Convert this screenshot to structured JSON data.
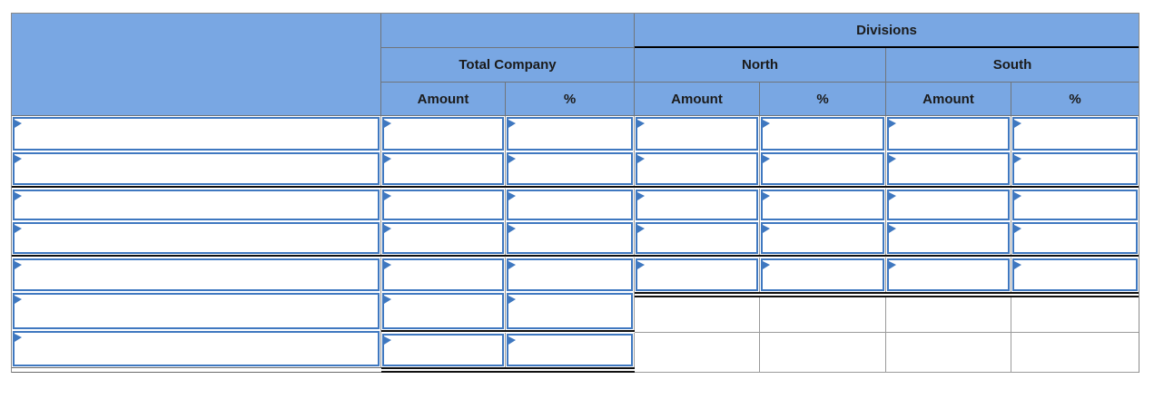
{
  "table": {
    "header": {
      "divisions": "Divisions",
      "total_company": "Total Company",
      "north": "North",
      "south": "South",
      "amount": "Amount",
      "percent": "%"
    },
    "body": {
      "row_count": 7,
      "division_input_rows": 5,
      "all_inputs_blank": true,
      "input_value": ""
    },
    "colors": {
      "header_bg": "#79a7e3",
      "input_border": "#3f78c0",
      "rule_black": "#101010",
      "grid_gray": "#9a9a9a"
    }
  }
}
